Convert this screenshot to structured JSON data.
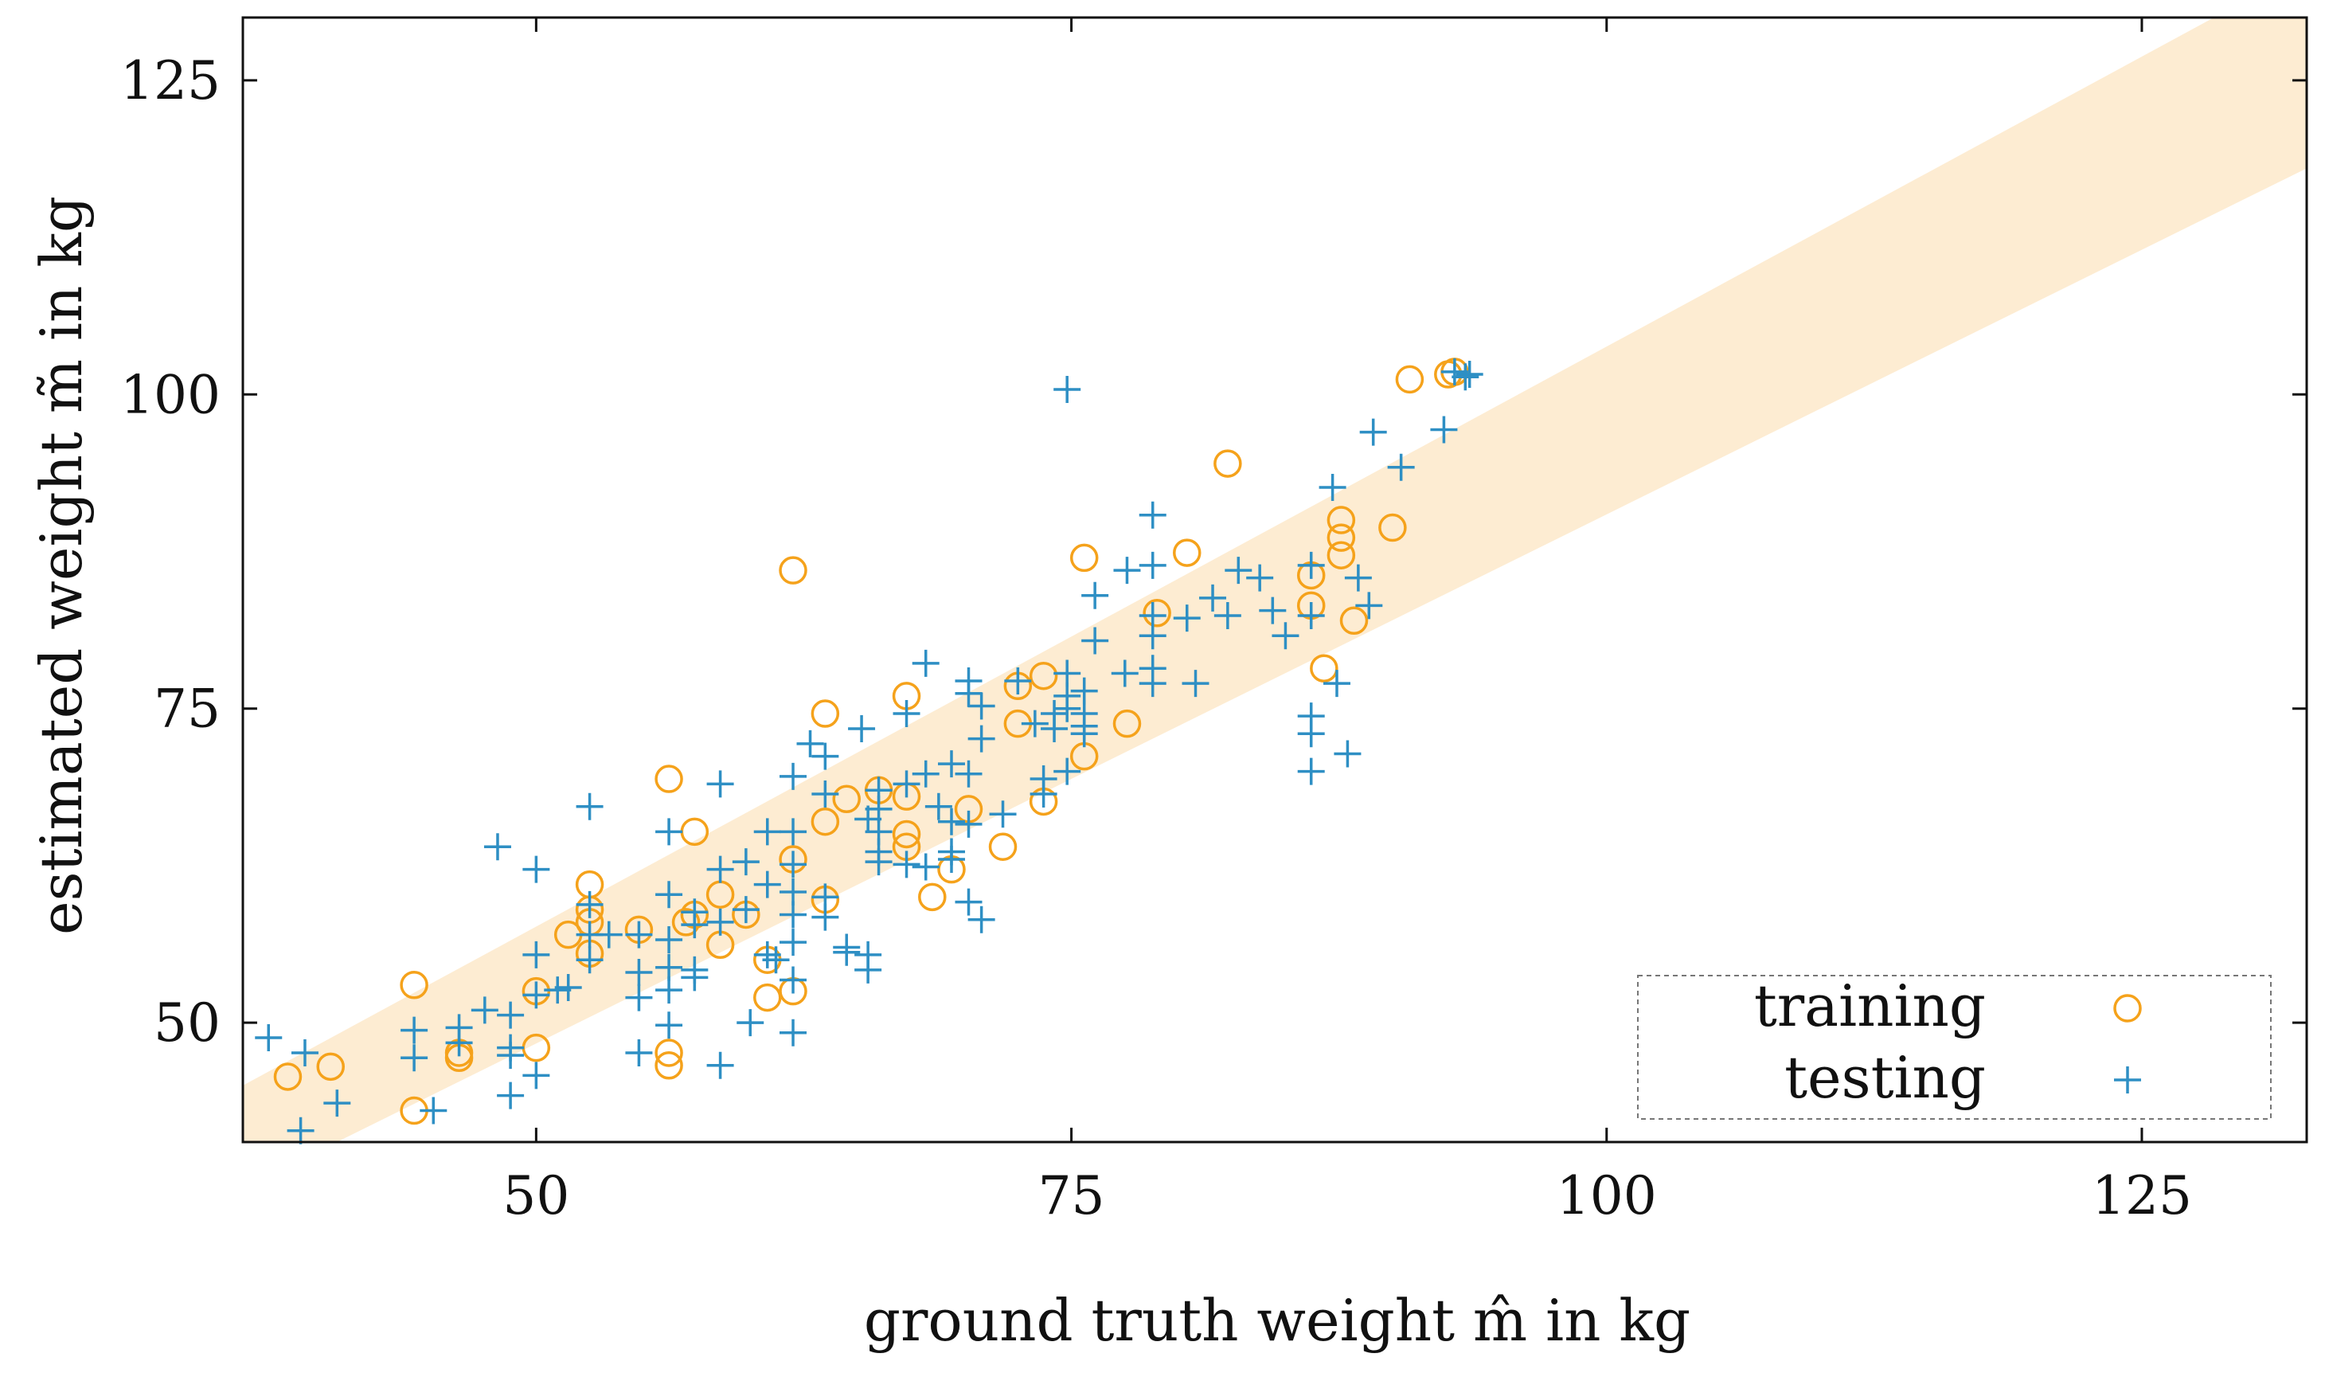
{
  "chart_data": {
    "type": "scatter",
    "title": "",
    "xlabel": "ground truth weight m̂ in kg",
    "ylabel": "estimated weight m̃ in kg",
    "xlim": [
      36.3,
      132.7
    ],
    "ylim": [
      40.5,
      130
    ],
    "xticks": [
      50,
      75,
      100,
      125
    ],
    "yticks": [
      50,
      75,
      100,
      125
    ],
    "tick_labels_x": [
      "50",
      "75",
      "100",
      "125"
    ],
    "tick_labels_y": [
      "50",
      "75",
      "100",
      "125"
    ],
    "grid": false,
    "legend_position": "bottom-right",
    "band": {
      "description_values": "tolerance band around y = x",
      "lower_at_x": [
        [
          36.3,
          36.8
        ],
        [
          132.7,
          118.0
        ]
      ],
      "upper_at_x": [
        [
          36.3,
          45.0
        ],
        [
          132.7,
          134.0
        ]
      ],
      "color": "#fdecd2"
    },
    "series": [
      {
        "name": "training",
        "marker": "circle",
        "color": "#f5a21b",
        "points": [
          [
            38.4,
            45.7
          ],
          [
            40.4,
            46.5
          ],
          [
            44.3,
            53.0
          ],
          [
            44.3,
            43.0
          ],
          [
            46.4,
            47.2
          ],
          [
            46.4,
            47.6
          ],
          [
            50.0,
            48.0
          ],
          [
            50.0,
            52.5
          ],
          [
            51.5,
            57.0
          ],
          [
            52.5,
            55.5
          ],
          [
            52.5,
            58.0
          ],
          [
            52.5,
            59.0
          ],
          [
            52.5,
            61.0
          ],
          [
            54.8,
            57.4
          ],
          [
            56.2,
            46.6
          ],
          [
            56.2,
            47.6
          ],
          [
            56.2,
            69.4
          ],
          [
            57.0,
            58.0
          ],
          [
            57.4,
            58.6
          ],
          [
            57.4,
            65.2
          ],
          [
            58.6,
            56.2
          ],
          [
            58.6,
            60.2
          ],
          [
            59.8,
            58.6
          ],
          [
            60.8,
            52.0
          ],
          [
            60.8,
            55.0
          ],
          [
            62.0,
            52.5
          ],
          [
            62.0,
            63.0
          ],
          [
            62.0,
            86.0
          ],
          [
            63.5,
            59.8
          ],
          [
            63.5,
            66.0
          ],
          [
            63.5,
            74.6
          ],
          [
            64.5,
            67.8
          ],
          [
            66.0,
            68.5
          ],
          [
            67.3,
            64.0
          ],
          [
            67.3,
            65.0
          ],
          [
            67.3,
            68.0
          ],
          [
            67.3,
            76.0
          ],
          [
            68.5,
            60.0
          ],
          [
            69.4,
            62.2
          ],
          [
            70.2,
            67.0
          ],
          [
            71.8,
            64.0
          ],
          [
            72.5,
            73.8
          ],
          [
            72.5,
            76.8
          ],
          [
            73.7,
            67.6
          ],
          [
            73.7,
            77.6
          ],
          [
            75.6,
            71.2
          ],
          [
            75.6,
            87.0
          ],
          [
            77.6,
            73.8
          ],
          [
            79.0,
            82.6
          ],
          [
            80.4,
            87.4
          ],
          [
            82.3,
            94.5
          ],
          [
            86.2,
            83.2
          ],
          [
            86.2,
            85.6
          ],
          [
            86.8,
            78.2
          ],
          [
            87.6,
            87.2
          ],
          [
            87.6,
            88.6
          ],
          [
            87.6,
            90.0
          ],
          [
            88.2,
            82.0
          ],
          [
            90.0,
            89.4
          ],
          [
            90.8,
            101.2
          ],
          [
            92.6,
            101.6
          ],
          [
            92.9,
            101.8
          ]
        ]
      },
      {
        "name": "testing",
        "marker": "plus",
        "color": "#2e8fc4",
        "points": [
          [
            37.5,
            48.8
          ],
          [
            39.2,
            47.6
          ],
          [
            39.0,
            41.4
          ],
          [
            40.7,
            43.6
          ],
          [
            44.3,
            49.4
          ],
          [
            44.3,
            47.2
          ],
          [
            45.2,
            43.0
          ],
          [
            46.4,
            48.4
          ],
          [
            46.4,
            49.6
          ],
          [
            47.6,
            51.0
          ],
          [
            48.2,
            64.0
          ],
          [
            48.8,
            50.6
          ],
          [
            48.8,
            48.0
          ],
          [
            48.8,
            47.4
          ],
          [
            48.8,
            44.2
          ],
          [
            50.0,
            62.2
          ],
          [
            50.0,
            55.4
          ],
          [
            50.0,
            52.2
          ],
          [
            50.0,
            45.8
          ],
          [
            51.0,
            52.6
          ],
          [
            51.5,
            52.8
          ],
          [
            52.5,
            67.2
          ],
          [
            52.5,
            59.4
          ],
          [
            52.5,
            57.0
          ],
          [
            52.5,
            55.0
          ],
          [
            53.4,
            57.0
          ],
          [
            54.8,
            57.0
          ],
          [
            54.8,
            54.0
          ],
          [
            54.8,
            52.0
          ],
          [
            54.8,
            47.6
          ],
          [
            56.2,
            65.2
          ],
          [
            56.2,
            60.2
          ],
          [
            56.2,
            56.6
          ],
          [
            56.2,
            54.4
          ],
          [
            56.2,
            52.6
          ],
          [
            56.2,
            49.8
          ],
          [
            57.4,
            58.8
          ],
          [
            57.4,
            57.8
          ],
          [
            57.4,
            54.2
          ],
          [
            57.4,
            53.6
          ],
          [
            58.6,
            69.0
          ],
          [
            58.6,
            62.2
          ],
          [
            58.6,
            58.0
          ],
          [
            58.6,
            46.6
          ],
          [
            59.8,
            62.8
          ],
          [
            59.8,
            59.0
          ],
          [
            60.0,
            50.0
          ],
          [
            60.8,
            65.2
          ],
          [
            60.8,
            61.0
          ],
          [
            60.8,
            55.4
          ],
          [
            61.2,
            55.0
          ],
          [
            62.0,
            69.6
          ],
          [
            62.0,
            65.2
          ],
          [
            62.0,
            62.6
          ],
          [
            62.0,
            60.4
          ],
          [
            62.0,
            58.6
          ],
          [
            62.0,
            56.4
          ],
          [
            62.0,
            53.4
          ],
          [
            62.0,
            49.2
          ],
          [
            62.8,
            72.2
          ],
          [
            63.5,
            71.2
          ],
          [
            63.5,
            68.2
          ],
          [
            63.5,
            60.0
          ],
          [
            63.5,
            58.4
          ],
          [
            64.5,
            56.0
          ],
          [
            64.5,
            55.6
          ],
          [
            65.2,
            73.4
          ],
          [
            65.5,
            66.2
          ],
          [
            65.5,
            55.4
          ],
          [
            65.5,
            54.2
          ],
          [
            66.0,
            68.5
          ],
          [
            66.0,
            67.0
          ],
          [
            66.0,
            65.2
          ],
          [
            66.0,
            63.6
          ],
          [
            66.0,
            62.8
          ],
          [
            67.3,
            74.6
          ],
          [
            67.3,
            69.0
          ],
          [
            67.3,
            62.6
          ],
          [
            68.2,
            78.6
          ],
          [
            68.2,
            69.8
          ],
          [
            68.2,
            62.4
          ],
          [
            68.8,
            67.2
          ],
          [
            69.4,
            70.6
          ],
          [
            69.4,
            66.0
          ],
          [
            69.4,
            63.6
          ],
          [
            69.4,
            63.0
          ],
          [
            70.2,
            77.2
          ],
          [
            70.2,
            76.2
          ],
          [
            70.2,
            69.8
          ],
          [
            70.2,
            65.8
          ],
          [
            70.2,
            59.6
          ],
          [
            70.8,
            75.2
          ],
          [
            70.8,
            72.6
          ],
          [
            70.8,
            58.2
          ],
          [
            71.8,
            66.6
          ],
          [
            72.5,
            77.2
          ],
          [
            73.3,
            73.8
          ],
          [
            73.7,
            69.4
          ],
          [
            73.7,
            68.2
          ],
          [
            74.2,
            74.6
          ],
          [
            74.2,
            73.4
          ],
          [
            74.8,
            100.4
          ],
          [
            74.8,
            77.8
          ],
          [
            74.8,
            76.0
          ],
          [
            74.8,
            75.0
          ],
          [
            74.8,
            70.0
          ],
          [
            75.6,
            76.4
          ],
          [
            75.6,
            74.6
          ],
          [
            75.6,
            73.6
          ],
          [
            75.6,
            73.0
          ],
          [
            76.1,
            84.0
          ],
          [
            76.1,
            80.4
          ],
          [
            77.5,
            77.8
          ],
          [
            77.6,
            86.0
          ],
          [
            78.8,
            90.4
          ],
          [
            78.8,
            86.4
          ],
          [
            78.8,
            82.4
          ],
          [
            78.8,
            80.8
          ],
          [
            78.8,
            78.2
          ],
          [
            78.8,
            77.0
          ],
          [
            80.4,
            82.2
          ],
          [
            80.8,
            77.0
          ],
          [
            81.6,
            83.8
          ],
          [
            82.3,
            82.4
          ],
          [
            82.8,
            86.0
          ],
          [
            83.8,
            85.4
          ],
          [
            84.4,
            82.8
          ],
          [
            85.0,
            80.8
          ],
          [
            86.2,
            86.4
          ],
          [
            86.2,
            82.4
          ],
          [
            86.2,
            74.4
          ],
          [
            86.2,
            73.0
          ],
          [
            86.2,
            70.0
          ],
          [
            87.2,
            92.6
          ],
          [
            87.4,
            77.0
          ],
          [
            87.9,
            71.4
          ],
          [
            88.4,
            85.4
          ],
          [
            88.9,
            83.2
          ],
          [
            89.1,
            97.0
          ],
          [
            90.4,
            94.2
          ],
          [
            93.4,
            101.4
          ],
          [
            92.9,
            101.8
          ],
          [
            93.6,
            101.6
          ],
          [
            92.4,
            97.2
          ]
        ]
      }
    ]
  },
  "legend": {
    "training_label": "training",
    "testing_label": "testing"
  }
}
